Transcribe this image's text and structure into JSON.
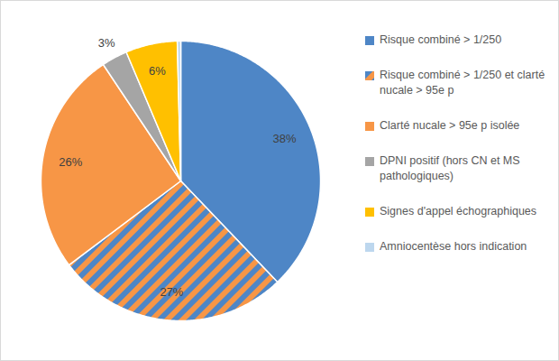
{
  "chart_data": {
    "type": "pie",
    "categories": [
      "Risque combiné > 1/250",
      "Risque combiné > 1/250 et clarté nucale > 95e p",
      "Clarté nucale > 95e p isolée",
      "DPNI positif (hors CN et MS pathologiques)",
      "Signes d'appel échographiques",
      "Amniocentèse hors indication"
    ],
    "values": [
      38,
      27,
      26,
      3,
      6,
      0.4
    ],
    "value_labels": [
      "38%",
      "27%",
      "26%",
      "3%",
      "6%",
      null
    ],
    "data_labels": true,
    "colors": [
      "#4e86c6",
      [
        "#4e86c6",
        "#f79646"
      ],
      "#f79646",
      "#a5a5a5",
      "#ffc000",
      "#bdd7ee"
    ],
    "legend": "right"
  }
}
